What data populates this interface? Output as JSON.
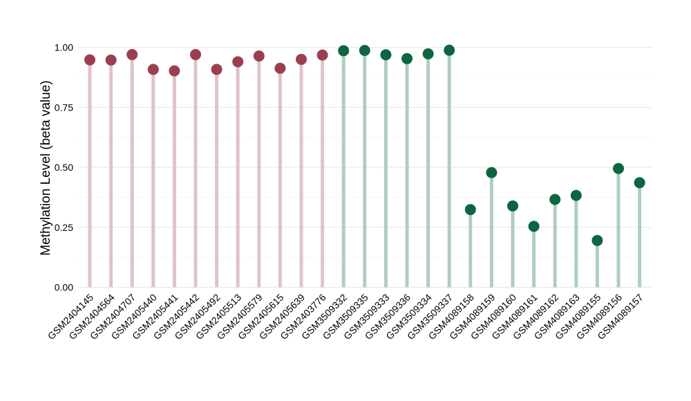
{
  "chart_data": {
    "type": "lollipop",
    "ylabel": "Methylation Level (beta value)",
    "xlabel": "",
    "ylim": [
      0,
      1.0
    ],
    "yticks": [
      "0.00",
      "0.25",
      "0.50",
      "0.75",
      "1.00"
    ],
    "ytick_values": [
      0,
      0.25,
      0.5,
      0.75,
      1.0
    ],
    "grid": true,
    "colors": {
      "group_a_point": "#9b3f50",
      "group_a_stem": "#dfc3c9",
      "group_b_point": "#0d6640",
      "group_b_stem": "#afcdc2"
    },
    "categories": [
      "GSM2404145",
      "GSM2404564",
      "GSM2404707",
      "GSM2405440",
      "GSM2405441",
      "GSM2405442",
      "GSM2405492",
      "GSM2405513",
      "GSM2405579",
      "GSM2405615",
      "GSM2405639",
      "GSM2403776",
      "GSM3509332",
      "GSM3509335",
      "GSM3509333",
      "GSM3509336",
      "GSM3509334",
      "GSM3509337",
      "GSM4089158",
      "GSM4089159",
      "GSM4089160",
      "GSM4089161",
      "GSM4089162",
      "GSM4089163",
      "GSM4089155",
      "GSM4089156",
      "GSM4089157"
    ],
    "values": [
      0.948,
      0.947,
      0.97,
      0.908,
      0.902,
      0.97,
      0.908,
      0.94,
      0.964,
      0.913,
      0.95,
      0.968,
      0.986,
      0.987,
      0.969,
      0.953,
      0.973,
      0.988,
      0.324,
      0.478,
      0.339,
      0.254,
      0.366,
      0.383,
      0.195,
      0.495,
      0.436
    ],
    "groups": [
      "a",
      "a",
      "a",
      "a",
      "a",
      "a",
      "a",
      "a",
      "a",
      "a",
      "a",
      "a",
      "b",
      "b",
      "b",
      "b",
      "b",
      "b",
      "b",
      "b",
      "b",
      "b",
      "b",
      "b",
      "b",
      "b",
      "b"
    ]
  }
}
